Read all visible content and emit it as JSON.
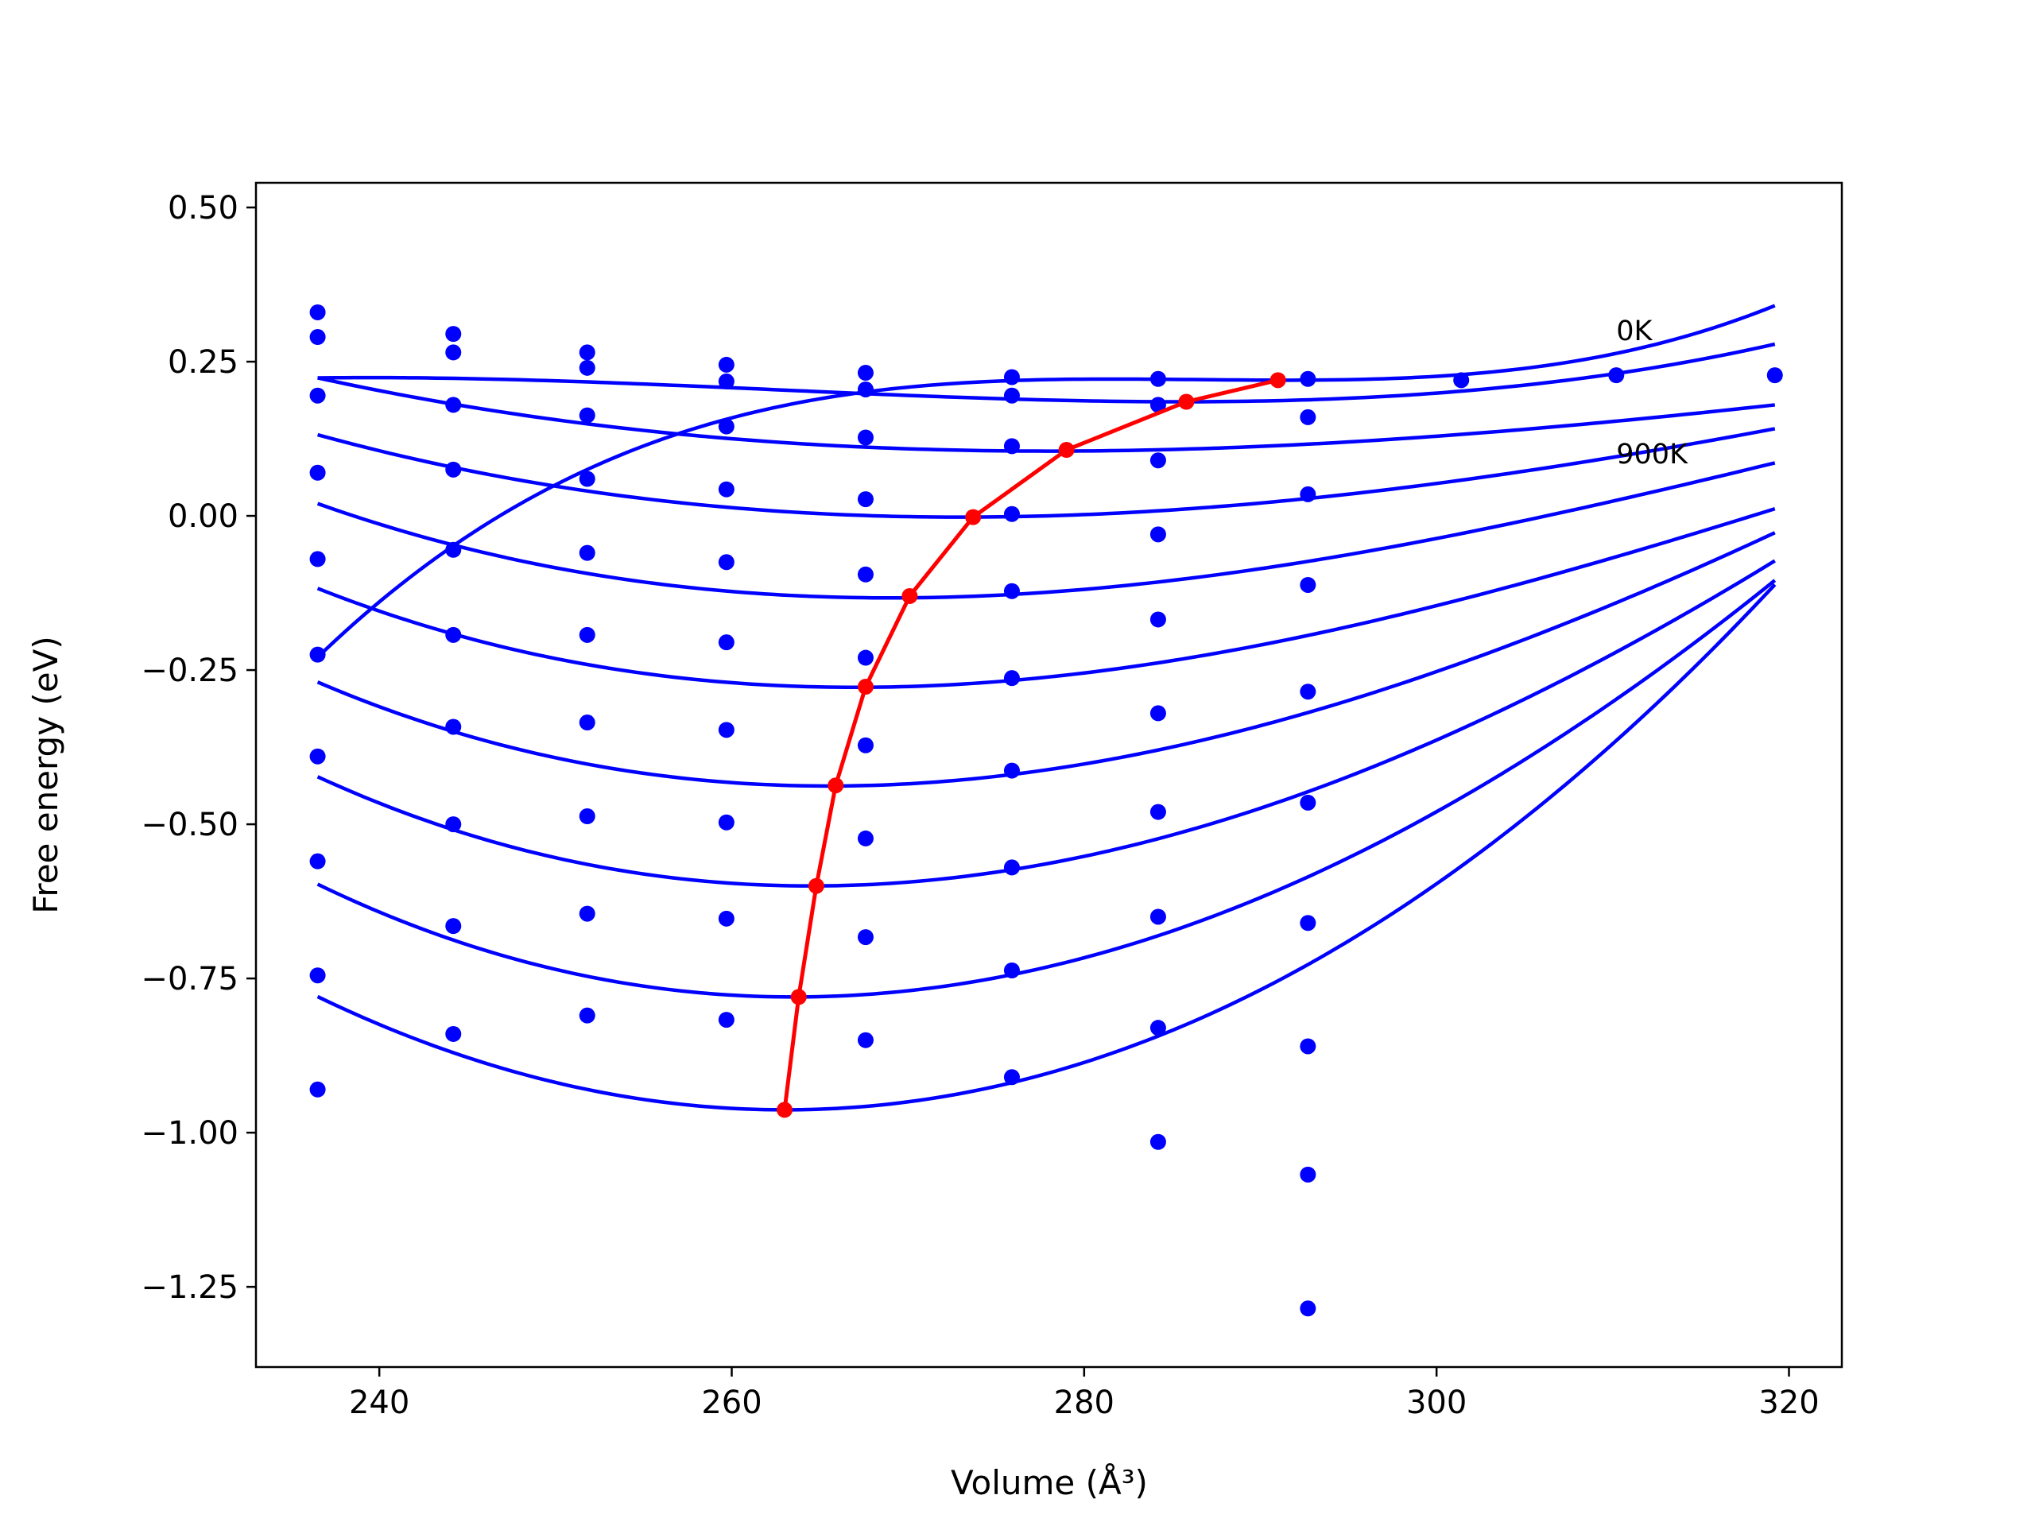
{
  "chart_data": {
    "type": "line",
    "title": "",
    "xlabel": "Volume (Å³)",
    "ylabel": "Free energy (eV)",
    "xlim": [
      233,
      323
    ],
    "ylim": [
      -1.38,
      0.54
    ],
    "xticks": [
      240,
      260,
      280,
      300,
      320
    ],
    "xtick_labels": [
      "240",
      "260",
      "280",
      "300",
      "320"
    ],
    "yticks": [
      0.5,
      0.25,
      0.0,
      -0.25,
      -0.5,
      -0.75,
      -1.0,
      -1.25
    ],
    "ytick_labels": [
      "0.50",
      "0.25",
      "0.00",
      "−0.25",
      "−0.50",
      "−0.75",
      "−1.00",
      "−1.25"
    ],
    "grid": false,
    "legend": "none",
    "colors": {
      "fits": "#0000ff",
      "points": "#0000ff",
      "minima": "#ff0000"
    },
    "annotations": [
      {
        "text": "0K",
        "x": 310.2,
        "y": 0.285
      },
      {
        "text": "900K",
        "x": 310.2,
        "y": 0.085
      }
    ],
    "fit_curves": [
      {
        "vmin": 291.5,
        "fmin": 0.22,
        "b": 5.5e-05,
        "c": 3.7e-06
      },
      {
        "vmin": 285.5,
        "fmin": 0.185,
        "b": 5.53e-05,
        "c": 8e-07
      },
      {
        "vmin": 278.0,
        "fmin": 0.105,
        "b": 5.65e-05,
        "c": -3e-07
      },
      {
        "vmin": 273.0,
        "fmin": -0.002,
        "b": 8.56e-05,
        "c": -4e-07
      },
      {
        "vmin": 269.0,
        "fmin": -0.133,
        "b": 0.000122,
        "c": -7e-07
      },
      {
        "vmin": 267.0,
        "fmin": -0.278,
        "b": 0.000148,
        "c": -8e-07
      },
      {
        "vmin": 265.5,
        "fmin": -0.438,
        "b": 0.00018,
        "c": -7e-07
      },
      {
        "vmin": 264.5,
        "fmin": -0.6,
        "b": 0.000209,
        "c": -6e-07
      },
      {
        "vmin": 263.5,
        "fmin": -0.78,
        "b": 0.00024,
        "c": -4e-07
      },
      {
        "vmin": 263.0,
        "fmin": -0.963,
        "b": 0.000264,
        "c": 1e-07
      }
    ],
    "fit_x_range": [
      236.5,
      319.2
    ],
    "data_points": [
      {
        "x": 236.5,
        "y": [
          0.33,
          0.29,
          0.195,
          0.07,
          -0.07,
          -0.225,
          -0.39,
          -0.56,
          -0.745,
          -0.93
        ]
      },
      {
        "x": 244.2,
        "y": [
          0.295,
          0.265,
          0.18,
          0.075,
          -0.055,
          -0.193,
          -0.342,
          -0.5,
          -0.665,
          -0.84
        ]
      },
      {
        "x": 251.8,
        "y": [
          0.265,
          0.24,
          0.163,
          0.06,
          -0.06,
          -0.193,
          -0.335,
          -0.487,
          -0.645,
          -0.81
        ]
      },
      {
        "x": 259.7,
        "y": [
          0.245,
          0.218,
          0.145,
          0.043,
          -0.075,
          -0.205,
          -0.347,
          -0.497,
          -0.653,
          -0.817
        ]
      },
      {
        "x": 267.6,
        "y": [
          0.232,
          0.205,
          0.127,
          0.027,
          -0.095,
          -0.23,
          -0.372,
          -0.523,
          -0.683,
          -0.85
        ]
      },
      {
        "x": 275.9,
        "y": [
          0.225,
          0.195,
          0.113,
          0.003,
          -0.122,
          -0.263,
          -0.413,
          -0.57,
          -0.737,
          -0.91
        ]
      },
      {
        "x": 284.2,
        "y": [
          0.222,
          0.18,
          0.09,
          -0.03,
          -0.168,
          -0.32,
          -0.48,
          -0.65,
          -0.83,
          -1.015
        ]
      },
      {
        "x": 292.7,
        "y": [
          0.222,
          0.16,
          0.035,
          -0.112,
          -0.285,
          -0.465,
          -0.66,
          -0.86,
          -1.068,
          -1.285
        ]
      },
      {
        "x": 301.4,
        "y": [
          0.22
        ]
      },
      {
        "x": 310.2,
        "y": [
          0.228
        ]
      },
      {
        "x": 319.2,
        "y": [
          0.228
        ]
      }
    ],
    "minima_series": {
      "x": [
        291.0,
        285.8,
        279.0,
        273.7,
        270.1,
        267.6,
        265.9,
        264.8,
        263.8,
        263.0
      ],
      "y": [
        0.22,
        0.185,
        0.107,
        -0.002,
        -0.13,
        -0.277,
        -0.437,
        -0.6,
        -0.78,
        -0.963
      ]
    }
  }
}
